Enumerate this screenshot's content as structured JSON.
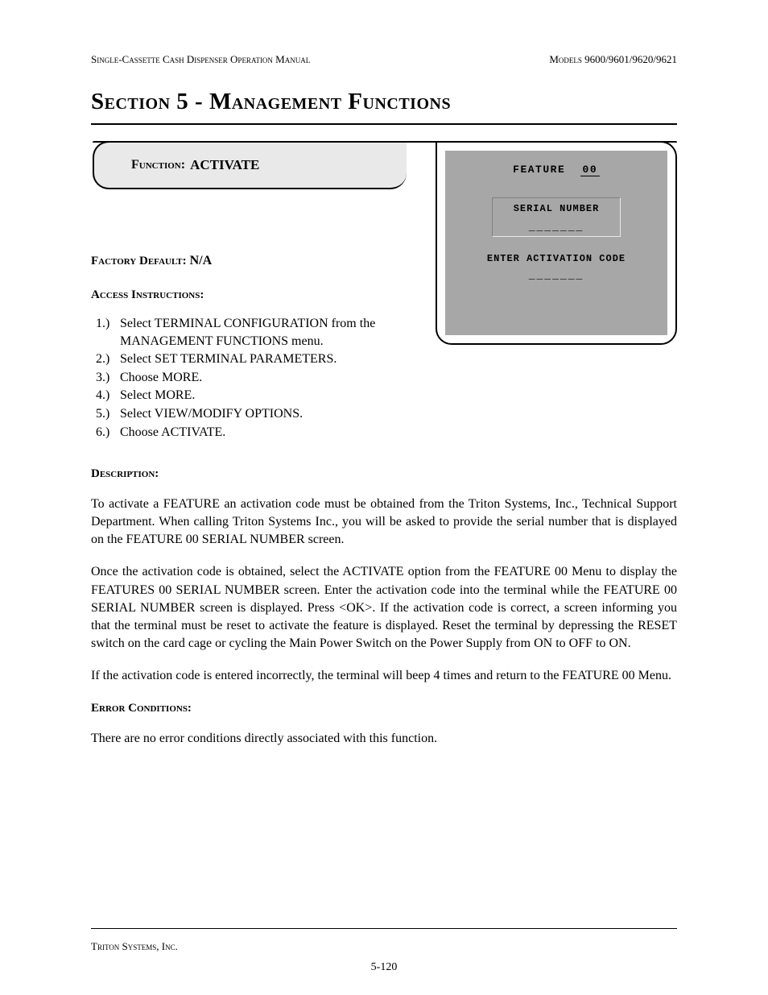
{
  "header": {
    "left": "Single-Cassette Cash Dispenser Operation Manual",
    "right": "Models 9600/9601/9620/9621"
  },
  "section_title": "Section 5 - Management Functions",
  "function_bar": {
    "label": "Function:",
    "name": "ACTIVATE"
  },
  "terminal": {
    "feature_label": "FEATURE",
    "feature_num": "00",
    "serial_label": "SERIAL NUMBER",
    "serial_blanks": "_______",
    "activation_label": "ENTER ACTIVATION CODE",
    "activation_blanks": "_______",
    "screen_bg": "#a7a7a7",
    "screen_font": "Courier New"
  },
  "factory_default": {
    "label": "Factory Default:",
    "value": "N/A"
  },
  "access": {
    "label": "Access Instructions:",
    "steps": [
      "Select TERMINAL CONFIGURATION from the MANAGEMENT FUNCTIONS menu.",
      "Select SET TERMINAL PARAMETERS.",
      "Choose MORE.",
      "Select MORE.",
      "Select VIEW/MODIFY OPTIONS.",
      "Choose ACTIVATE."
    ]
  },
  "description": {
    "label": "Description:",
    "paragraphs": [
      "To activate a FEATURE  an activation code must be obtained from the Triton Systems, Inc., Technical Support Department.  When calling Triton Systems Inc., you will be asked to provide the serial number that is displayed on the FEATURE 00 SERIAL NUMBER screen.",
      "Once the activation code is obtained, select the ACTIVATE option from the FEATURE 00 Menu to display the FEATURES 00 SERIAL NUMBER screen.  Enter the activation code into the terminal while the FEATURE 00 SERIAL NUMBER screen is displayed.  Press <OK>.  If the activation code is correct, a screen informing you that the terminal must be reset to activate the feature is displayed.  Reset the terminal by depressing the RESET switch on the card cage or cycling the Main Power Switch on the Power Supply from ON to OFF to ON.",
      "If the activation code is entered incorrectly, the terminal will beep 4 times and return to the FEATURE 00 Menu."
    ]
  },
  "error_conditions": {
    "label": "Error Conditions:",
    "text": "There are no error conditions directly associated with this function."
  },
  "footer": {
    "company": "Triton Systems, Inc.",
    "page": "5-120"
  },
  "colors": {
    "text": "#000000",
    "background": "#ffffff",
    "func_bar_bg": "#e9e9e9",
    "border": "#000000"
  }
}
